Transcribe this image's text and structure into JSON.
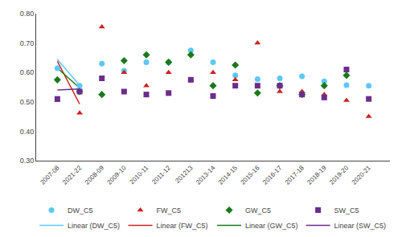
{
  "chart_data": {
    "type": "scatter",
    "categories": [
      "2007-08",
      "2008-09",
      "2009-10",
      "2010-11",
      "2011-12",
      "201213",
      "2013-14",
      "2014-15",
      "2015-16",
      "2016-17",
      "2017-18",
      "2018-19",
      "2019-20",
      "2020-21",
      "2021-22"
    ],
    "series": [
      {
        "name": "DW_C5",
        "type": "scatter",
        "marker": "circle",
        "color": "#5BC8F5",
        "values": [
          0.614,
          0.63,
          0.606,
          0.635,
          0.635,
          0.675,
          0.635,
          0.59,
          0.577,
          0.58,
          0.587,
          0.57,
          0.557,
          0.555,
          0.555
        ]
      },
      {
        "name": "FW_C5",
        "type": "scatter",
        "marker": "triangle-up",
        "color": "#CC2222",
        "values": [
          0.505,
          0.755,
          0.6,
          0.555,
          0.6,
          0.575,
          0.6,
          0.575,
          0.7,
          0.535,
          0.535,
          0.525,
          0.505,
          0.45,
          0.462
        ]
      },
      {
        "name": "GW_C5",
        "type": "scatter",
        "marker": "diamond",
        "color": "#1A7A1A",
        "values": [
          0.575,
          0.525,
          0.64,
          0.66,
          0.635,
          0.66,
          0.555,
          0.625,
          0.53,
          0.555,
          0.525,
          0.555,
          0.59,
          null,
          0.535
        ]
      },
      {
        "name": "SW_C5",
        "type": "scatter",
        "marker": "square",
        "color": "#6B2D8B",
        "values": [
          0.51,
          0.58,
          0.535,
          0.525,
          0.53,
          0.575,
          0.52,
          0.555,
          0.555,
          0.555,
          0.525,
          0.515,
          0.61,
          0.51,
          0.535
        ]
      },
      {
        "name": "Linear (DW_C5)",
        "type": "line",
        "line_style": "solid",
        "color": "#5BC8F5",
        "x": [
          "2007-08",
          "2021-22"
        ],
        "values": [
          0.64407,
          0.55607
        ]
      },
      {
        "name": "Linear (FW_C5)",
        "type": "line",
        "line_style": "solid",
        "color": "#CC2222",
        "x": [
          "2007-08",
          "2021-22"
        ],
        "values": [
          0.63766,
          0.49261
        ]
      },
      {
        "name": "Linear (GW_C5)",
        "type": "line",
        "line_style": "solid",
        "color": "#1A7A1A",
        "x": [
          "2007-08",
          "2021-22"
        ],
        "values": [
          0.61494,
          0.54735
        ]
      },
      {
        "name": "Linear (SW_C5)",
        "type": "line",
        "line_style": "solid",
        "color": "#6B2D8B",
        "x": [
          "2007-08",
          "2021-22"
        ],
        "values": [
          0.54058,
          0.54408
        ]
      }
    ],
    "ylim": [
      0.3,
      0.8
    ],
    "yticks": [
      {
        "value": 0.3,
        "label": "0.30"
      },
      {
        "value": 0.4,
        "label": "0.40"
      },
      {
        "value": 0.5,
        "label": "0.50"
      },
      {
        "value": 0.6,
        "label": "0.60"
      },
      {
        "value": 0.7,
        "label": "0.70"
      },
      {
        "value": 0.8,
        "label": "0.80"
      }
    ],
    "grid": false,
    "legend": "bottom"
  }
}
